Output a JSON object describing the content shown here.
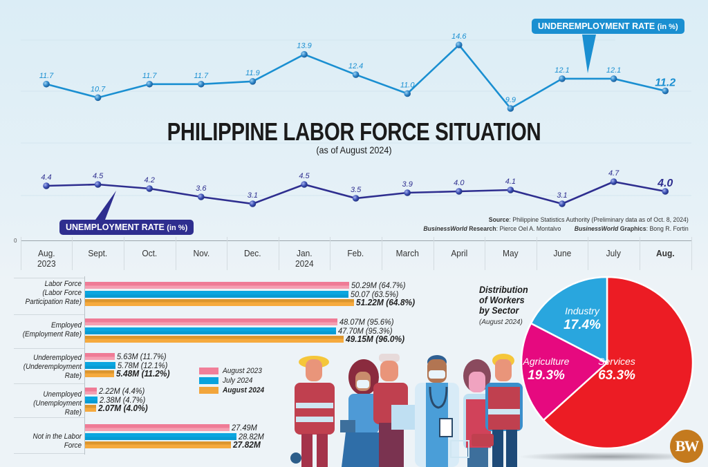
{
  "header": {
    "title": "PHILIPPINE LABOR FORCE SITUATION",
    "subtitle": "(as of August 2024)"
  },
  "callouts": {
    "underemployment": {
      "main": "UNDEREMPLOYMENT RATE ",
      "unit": "(in %)"
    },
    "unemployment": {
      "main": "UNEMPLOYMENT RATE ",
      "unit": "(in %)"
    }
  },
  "credits": {
    "source_label": "Source",
    "source_text": ": Philippine Statistics Authority (Preliminary data as of Oct. 8, 2024)",
    "research_brand": "BusinessWorld",
    "research_label": " Research",
    "research_text": ": Pierce Oel A. Montalvo",
    "graphics_brand": "BusinessWorld",
    "graphics_label": " Graphics",
    "graphics_text": ": Bong R. Fortin"
  },
  "axis_zero": "0",
  "months": [
    {
      "line1": "Aug.",
      "line2": "2023"
    },
    {
      "line1": "Sept.",
      "line2": ""
    },
    {
      "line1": "Oct.",
      "line2": ""
    },
    {
      "line1": "Nov.",
      "line2": ""
    },
    {
      "line1": "Dec.",
      "line2": ""
    },
    {
      "line1": "Jan.",
      "line2": "2024"
    },
    {
      "line1": "Feb.",
      "line2": ""
    },
    {
      "line1": "March",
      "line2": ""
    },
    {
      "line1": "April",
      "line2": ""
    },
    {
      "line1": "May",
      "line2": ""
    },
    {
      "line1": "June",
      "line2": ""
    },
    {
      "line1": "July",
      "line2": ""
    },
    {
      "line1": "Aug.",
      "line2": ""
    }
  ],
  "bar_section": {
    "categories": [
      {
        "label_lines": [
          "Labor Force",
          "(Labor Force",
          "Participation Rate)"
        ]
      },
      {
        "label_lines": [
          "Employed",
          "(Employment Rate)"
        ]
      },
      {
        "label_lines": [
          "Underemployed",
          "(Underemployment",
          "Rate)"
        ]
      },
      {
        "label_lines": [
          "Unemployed",
          "(Unemployment Rate)"
        ]
      },
      {
        "label_lines": [
          "Not in the Labor Force"
        ]
      }
    ],
    "value_labels": [
      [
        "50.29M (64.7%)",
        "50.07 (63.5%)",
        "51.22M (64.8%)"
      ],
      [
        "48.07M (95.6%)",
        "47.70M (95.3%)",
        "49.15M (96.0%)"
      ],
      [
        "5.63M (11.7%)",
        "5.78M (12.1%)",
        "5.48M (11.2%)"
      ],
      [
        "2.22M (4.4%)",
        "2.38M (4.7%)",
        "2.07M (4.0%)"
      ],
      [
        "27.49M",
        "28.82M",
        "27.82M"
      ]
    ],
    "legend": [
      {
        "label": "August 2023",
        "color": "#f17f99"
      },
      {
        "label": "July 2024",
        "color": "#0aa3dd"
      },
      {
        "label": "August 2024",
        "color": "#f2a53c"
      }
    ]
  },
  "pie_section": {
    "title_lines": [
      "Distribution",
      "of Workers",
      "by Sector"
    ],
    "subtitle": "(August 2024)",
    "slices": [
      {
        "name": "Industry",
        "pct": "17.4%"
      },
      {
        "name": "Agriculture",
        "pct": "19.3%"
      },
      {
        "name": "Services",
        "pct": "63.3%"
      }
    ]
  },
  "logo": {
    "text": "BW"
  },
  "colors": {
    "underemployment_line": "#1a8fd1",
    "unemployment_line": "#2e2e8f",
    "services": "#ec1c24",
    "agriculture": "#e6097f",
    "industry": "#29a6de",
    "logo_bg": "#c47a1e"
  },
  "chart_data": [
    {
      "type": "line",
      "title": "Underemployment Rate (in %)",
      "categories": [
        "Aug. 2023",
        "Sept.",
        "Oct.",
        "Nov.",
        "Dec.",
        "Jan. 2024",
        "Feb.",
        "March",
        "April",
        "May",
        "June",
        "July",
        "Aug."
      ],
      "values": [
        11.7,
        10.7,
        11.7,
        11.7,
        11.9,
        13.9,
        12.4,
        11.0,
        14.6,
        9.9,
        12.1,
        12.1,
        11.2
      ],
      "labels": [
        "11.7",
        "10.7",
        "11.7",
        "11.7",
        "11.9",
        "13.9",
        "12.4",
        "11.0",
        "14.6",
        "9.9",
        "12.1",
        "12.1",
        "11.2"
      ],
      "xlabel": "",
      "ylabel": "%"
    },
    {
      "type": "line",
      "title": "Unemployment Rate (in %)",
      "categories": [
        "Aug. 2023",
        "Sept.",
        "Oct.",
        "Nov.",
        "Dec.",
        "Jan. 2024",
        "Feb.",
        "March",
        "April",
        "May",
        "June",
        "July",
        "Aug."
      ],
      "values": [
        4.4,
        4.5,
        4.2,
        3.6,
        3.1,
        4.5,
        3.5,
        3.9,
        4.0,
        4.1,
        3.1,
        4.7,
        4.0
      ],
      "labels": [
        "4.4",
        "4.5",
        "4.2",
        "3.6",
        "3.1",
        "4.5",
        "3.5",
        "3.9",
        "4.0",
        "4.1",
        "3.1",
        "4.7",
        "4.0"
      ],
      "xlabel": "",
      "ylabel": "%"
    },
    {
      "type": "bar",
      "orientation": "horizontal",
      "title": "Labor Force Indicators (millions)",
      "categories": [
        "Labor Force (Labor Force Participation Rate)",
        "Employed (Employment Rate)",
        "Underemployed (Underemployment Rate)",
        "Unemployed (Unemployment Rate)",
        "Not in the Labor Force"
      ],
      "series": [
        {
          "name": "August 2023",
          "values": [
            50.29,
            48.07,
            5.63,
            2.22,
            27.49
          ],
          "rates": [
            64.7,
            95.6,
            11.7,
            4.4,
            null
          ]
        },
        {
          "name": "July 2024",
          "values": [
            50.07,
            47.7,
            5.78,
            2.38,
            28.82
          ],
          "rates": [
            63.5,
            95.3,
            12.1,
            4.7,
            null
          ]
        },
        {
          "name": "August 2024",
          "values": [
            51.22,
            49.15,
            5.48,
            2.07,
            27.82
          ],
          "rates": [
            64.8,
            96.0,
            11.2,
            4.0,
            null
          ]
        }
      ],
      "legend_position": "right-inside"
    },
    {
      "type": "pie",
      "title": "Distribution of Workers by Sector (August 2024)",
      "categories": [
        "Services",
        "Agriculture",
        "Industry"
      ],
      "values": [
        63.3,
        19.3,
        17.4
      ]
    }
  ]
}
